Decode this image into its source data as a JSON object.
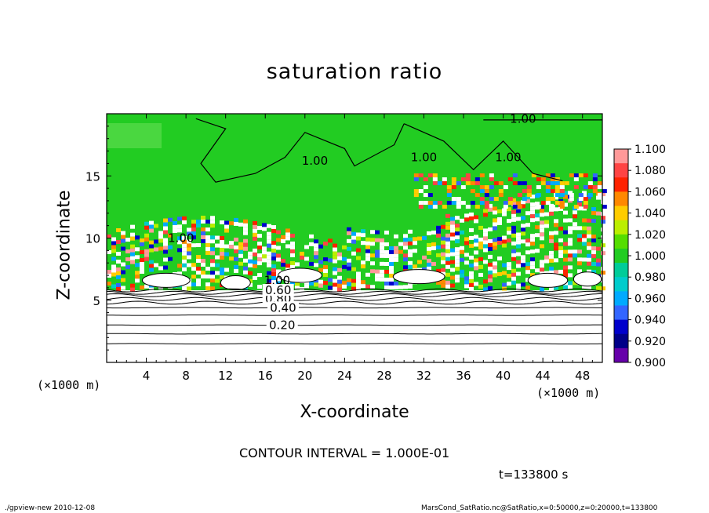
{
  "chart_data": {
    "type": "heatmap",
    "title": "saturation ratio",
    "xlabel": "X-coordinate",
    "ylabel": "Z-coordinate",
    "x_unit_label": "(×1000 m)",
    "x_unit_label_right": "(×1000 m)",
    "xlim": [
      0,
      50
    ],
    "ylim": [
      0,
      20
    ],
    "x_ticks": [
      4,
      8,
      12,
      16,
      20,
      24,
      28,
      32,
      36,
      40,
      44,
      48
    ],
    "x_tick_labels": [
      "4",
      "8",
      "12",
      "16",
      "20",
      "24",
      "28",
      "32",
      "36",
      "40",
      "44",
      "48"
    ],
    "y_ticks": [
      5,
      10,
      15
    ],
    "y_tick_labels": [
      "5",
      "10",
      "15"
    ],
    "contour_interval": "CONTOUR INTERVAL = 1.000E-01",
    "time_label": "t=133800 s",
    "colorbar": {
      "range": [
        0.9,
        1.1
      ],
      "labels": [
        "1.100",
        "1.080",
        "1.060",
        "1.040",
        "1.020",
        "1.000",
        "0.980",
        "0.960",
        "0.940",
        "0.920",
        "0.900"
      ],
      "colors": [
        "#ff9999",
        "#ff4444",
        "#ff2200",
        "#ff8800",
        "#ffcc00",
        "#bbee00",
        "#55dd00",
        "#22cc22",
        "#00cc99",
        "#00cccc",
        "#00aaff",
        "#3366ff",
        "#0000cc",
        "#000088",
        "#6600aa"
      ]
    },
    "contour_labels": [
      {
        "text": "1.00",
        "x": 42,
        "z": 19.6
      },
      {
        "text": "1.00",
        "x": 21,
        "z": 16.2
      },
      {
        "text": "1.00",
        "x": 32,
        "z": 16.5
      },
      {
        "text": "1.00",
        "x": 40.5,
        "z": 16.5
      },
      {
        "text": "1.00",
        "x": 7.5,
        "z": 10.0
      },
      {
        "text": "1.00",
        "x": 17.2,
        "z": 6.6
      },
      {
        "text": "0.80",
        "x": 17.3,
        "z": 5.1
      },
      {
        "text": "0.60",
        "x": 17.3,
        "z": 5.8
      },
      {
        "text": "0.40",
        "x": 17.8,
        "z": 4.4
      },
      {
        "text": "0.20",
        "x": 17.7,
        "z": 3.0
      }
    ],
    "lower_contour_levels_z": [
      1.5,
      2.3,
      3.0,
      3.8,
      4.4,
      4.8,
      5.1,
      5.4,
      5.6,
      5.8
    ]
  },
  "footer": {
    "left": "./gpview-new   2010-12-08",
    "right": "MarsCond_SatRatio.nc@SatRatio,x=0:50000,z=0:20000,t=133800"
  },
  "colors": {
    "background": "#ffffff",
    "supersat_green": "#22cc22",
    "frame": "#000000"
  }
}
